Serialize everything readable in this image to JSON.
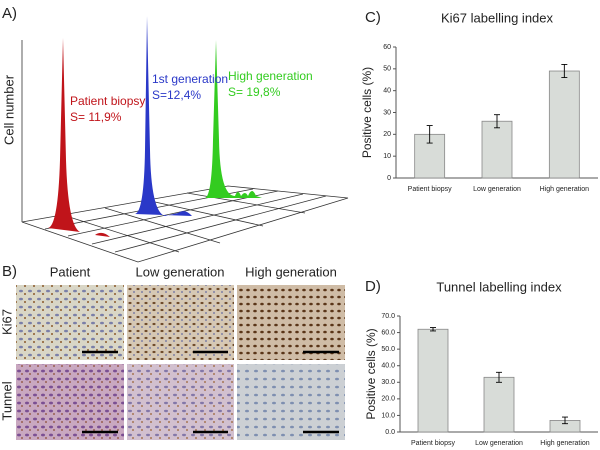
{
  "panel_a": {
    "label": "A)",
    "y_label": "Cell number",
    "annotations": [
      {
        "name": "Patient biopsy",
        "text": "S= 11,9%"
      },
      {
        "name": "1st generation",
        "text": "S=12,4%"
      },
      {
        "name": "High generation",
        "text": "S= 19,8%"
      }
    ]
  },
  "panel_b": {
    "label": "B)",
    "columns": [
      "Patient",
      "Low generation",
      "High generation"
    ],
    "rows": [
      "Ki67",
      "Tunnel"
    ]
  },
  "chart_data": [
    {
      "type": "bar",
      "label": "C)",
      "title": "Ki67 labelling index",
      "y_label": "Positive cells (%)",
      "categories": [
        "Patient biopsy",
        "Low generation",
        "High generation"
      ],
      "values": [
        20,
        26,
        49
      ],
      "error": [
        4,
        3,
        3
      ],
      "color": "#d8dcd8",
      "ylim": [
        0,
        60
      ],
      "yticks": [
        0,
        10,
        20,
        30,
        40,
        50,
        60
      ]
    },
    {
      "type": "bar",
      "label": "D)",
      "title": "Tunnel labelling index",
      "y_label": "Positive cells (%)",
      "categories": [
        "Patient biopsy",
        "Low generation",
        "High generation"
      ],
      "values": [
        62,
        33,
        7
      ],
      "error": [
        1,
        3,
        2
      ],
      "color": "#d8dcd8",
      "ylim": [
        0,
        70
      ],
      "yticks": [
        {
          "value": 0,
          "label": "0.0"
        },
        {
          "value": 10,
          "label": "10.0"
        },
        {
          "value": 20,
          "label": "20.0"
        },
        {
          "value": 30,
          "label": "30.0"
        },
        {
          "value": 40,
          "label": "40.0"
        },
        {
          "value": 50,
          "label": "50.0"
        },
        {
          "value": 60,
          "label": "60.0"
        },
        {
          "value": 70,
          "label": "70.0"
        }
      ]
    }
  ]
}
